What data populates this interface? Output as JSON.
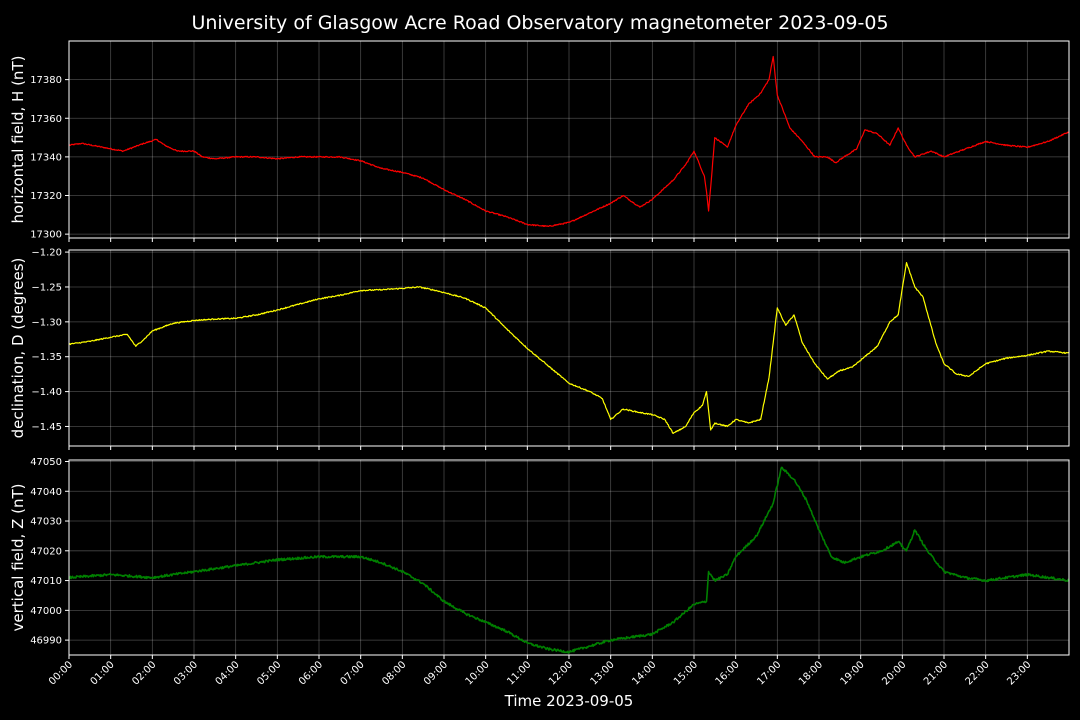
{
  "chart_data": {
    "type": "line",
    "title": "University of Glasgow Acre Road Observatory magnetometer 2023-09-05",
    "xlabel": "Time 2023-09-05",
    "x_unit": "hours",
    "xlim": [
      0,
      24
    ],
    "x_ticks": [
      "00:00",
      "01:00",
      "02:00",
      "03:00",
      "04:00",
      "05:00",
      "06:00",
      "07:00",
      "08:00",
      "09:00",
      "10:00",
      "11:00",
      "12:00",
      "13:00",
      "14:00",
      "15:00",
      "16:00",
      "17:00",
      "18:00",
      "19:00",
      "20:00",
      "21:00",
      "22:00",
      "23:00"
    ],
    "grid": true,
    "background": "#000000",
    "panels": [
      {
        "ylabel": "horizontal field, H (nT)",
        "color": "#ff0000",
        "ylim": [
          17298,
          17400
        ],
        "y_ticks": [
          17300,
          17320,
          17340,
          17360,
          17380
        ],
        "tick_decimals": 0,
        "x": [
          0,
          0.3,
          0.8,
          1.3,
          1.8,
          2.1,
          2.3,
          2.6,
          3.0,
          3.2,
          3.5,
          4.0,
          4.5,
          5.0,
          5.5,
          6.0,
          6.5,
          7.0,
          7.5,
          8.0,
          8.5,
          9.0,
          9.5,
          10.0,
          10.5,
          11.0,
          11.5,
          12.0,
          12.5,
          13.0,
          13.3,
          13.7,
          14.0,
          14.3,
          14.5,
          14.8,
          15.0,
          15.25,
          15.3,
          15.35,
          15.5,
          15.8,
          16.0,
          16.3,
          16.6,
          16.8,
          16.9,
          17.0,
          17.3,
          17.6,
          17.9,
          18.2,
          18.4,
          18.6,
          18.9,
          19.1,
          19.4,
          19.7,
          19.9,
          20.1,
          20.3,
          20.7,
          21.0,
          21.5,
          22.0,
          22.5,
          23.0,
          23.5,
          24.0
        ],
        "values": [
          17346,
          17347,
          17345,
          17343,
          17347,
          17349,
          17346,
          17343,
          17343,
          17340,
          17339,
          17340,
          17340,
          17339,
          17340,
          17340,
          17340,
          17338,
          17334,
          17332,
          17329,
          17323,
          17318,
          17312,
          17309,
          17305,
          17304,
          17306,
          17311,
          17316,
          17320,
          17314,
          17318,
          17324,
          17328,
          17336,
          17343,
          17330,
          17322,
          17312,
          17350,
          17345,
          17356,
          17367,
          17373,
          17380,
          17392,
          17372,
          17355,
          17348,
          17340,
          17340,
          17337,
          17340,
          17344,
          17354,
          17352,
          17346,
          17355,
          17346,
          17340,
          17343,
          17340,
          17344,
          17348,
          17346,
          17345,
          17348,
          17353
        ]
      },
      {
        "ylabel": "declination, D (degrees)",
        "color": "#ffff00",
        "ylim": [
          -1.478,
          -1.197
        ],
        "y_ticks": [
          -1.45,
          -1.4,
          -1.35,
          -1.3,
          -1.25,
          -1.2
        ],
        "tick_decimals": 2,
        "x": [
          0,
          0.5,
          1.0,
          1.4,
          1.6,
          1.8,
          2.0,
          2.5,
          3.0,
          3.5,
          4.0,
          4.5,
          5.0,
          5.5,
          6.0,
          6.5,
          7.0,
          7.5,
          8.0,
          8.4,
          8.8,
          9.0,
          9.5,
          10.0,
          10.5,
          11.0,
          11.5,
          12.0,
          12.5,
          12.8,
          13.0,
          13.3,
          13.7,
          14.0,
          14.3,
          14.5,
          14.8,
          15.0,
          15.2,
          15.3,
          15.4,
          15.5,
          15.8,
          16.0,
          16.3,
          16.6,
          16.8,
          16.9,
          17.0,
          17.2,
          17.4,
          17.6,
          17.9,
          18.2,
          18.5,
          18.8,
          19.1,
          19.4,
          19.7,
          19.9,
          20.1,
          20.3,
          20.5,
          20.8,
          21.0,
          21.3,
          21.6,
          22.0,
          22.5,
          23.0,
          23.5,
          24.0
        ],
        "values": [
          -1.332,
          -1.328,
          -1.322,
          -1.318,
          -1.335,
          -1.325,
          -1.313,
          -1.302,
          -1.298,
          -1.296,
          -1.295,
          -1.29,
          -1.283,
          -1.275,
          -1.267,
          -1.262,
          -1.255,
          -1.254,
          -1.252,
          -1.25,
          -1.255,
          -1.258,
          -1.266,
          -1.28,
          -1.31,
          -1.338,
          -1.363,
          -1.388,
          -1.4,
          -1.41,
          -1.44,
          -1.425,
          -1.43,
          -1.433,
          -1.44,
          -1.46,
          -1.45,
          -1.43,
          -1.42,
          -1.4,
          -1.455,
          -1.445,
          -1.45,
          -1.44,
          -1.445,
          -1.44,
          -1.38,
          -1.33,
          -1.28,
          -1.305,
          -1.29,
          -1.33,
          -1.36,
          -1.382,
          -1.37,
          -1.365,
          -1.35,
          -1.335,
          -1.3,
          -1.29,
          -1.215,
          -1.25,
          -1.265,
          -1.33,
          -1.36,
          -1.375,
          -1.378,
          -1.36,
          -1.352,
          -1.348,
          -1.342,
          -1.345
        ]
      },
      {
        "ylabel": "vertical field, Z (nT)",
        "color": "#008000",
        "ylim": [
          46985,
          47050.5
        ],
        "y_ticks": [
          46990,
          47000,
          47010,
          47020,
          47030,
          47040,
          47050
        ],
        "tick_decimals": 0,
        "x": [
          0,
          1.0,
          2.0,
          3.0,
          4.0,
          5.0,
          6.0,
          6.5,
          7.0,
          7.5,
          8.0,
          8.5,
          9.0,
          9.5,
          10.0,
          10.5,
          11.0,
          11.5,
          12.0,
          12.5,
          13.0,
          13.5,
          14.0,
          14.5,
          15.0,
          15.3,
          15.35,
          15.5,
          15.8,
          16.0,
          16.5,
          16.9,
          17.1,
          17.4,
          17.7,
          18.0,
          18.3,
          18.6,
          19.0,
          19.5,
          19.9,
          20.1,
          20.3,
          20.6,
          21.0,
          21.5,
          22.0,
          22.5,
          23.0,
          23.5,
          24.0
        ],
        "values": [
          47011,
          47012,
          47011,
          47013,
          47015,
          47017,
          47018,
          47018,
          47018,
          47016,
          47013,
          47009,
          47003,
          46999,
          46996,
          46993,
          46989,
          46987,
          46986,
          46988,
          46990,
          46991,
          46992,
          46996,
          47002,
          47003,
          47013,
          47010,
          47012,
          47018,
          47025,
          47036,
          47048,
          47044,
          47037,
          47027,
          47018,
          47016,
          47018,
          47020,
          47023,
          47020,
          47027,
          47020,
          47013,
          47011,
          47010,
          47011,
          47012,
          47011,
          47010
        ]
      }
    ]
  }
}
